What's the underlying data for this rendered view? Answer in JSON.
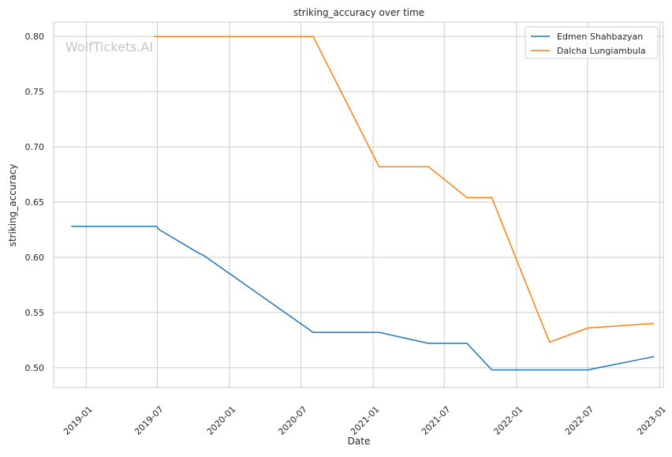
{
  "chart_data": {
    "type": "line",
    "title": "striking_accuracy over time",
    "xlabel": "Date",
    "ylabel": "striking_accuracy",
    "watermark": "WolfTickets.AI",
    "x_ticks": [
      "2019-01",
      "2019-07",
      "2020-01",
      "2020-07",
      "2021-01",
      "2021-07",
      "2022-01",
      "2022-07",
      "2023-01"
    ],
    "y_ticks": [
      "0.50",
      "0.55",
      "0.60",
      "0.65",
      "0.70",
      "0.75",
      "0.80"
    ],
    "xlim": [
      "2018-10-10",
      "2023-01-10"
    ],
    "ylim": [
      0.482,
      0.813
    ],
    "grid": true,
    "legend_position": "top-right",
    "series": [
      {
        "name": "Edmen Shahbazyan",
        "color": "#1f77b4",
        "points": [
          [
            "2018-11-24",
            0.628
          ],
          [
            "2019-06-29",
            0.628
          ],
          [
            "2019-07-06",
            0.625
          ],
          [
            "2019-10-18",
            0.603
          ],
          [
            "2019-10-26",
            0.602
          ],
          [
            "2020-08-01",
            0.532
          ],
          [
            "2021-01-16",
            0.532
          ],
          [
            "2021-05-22",
            0.522
          ],
          [
            "2021-08-28",
            0.522
          ],
          [
            "2021-10-30",
            0.498
          ],
          [
            "2022-07-02",
            0.498
          ],
          [
            "2022-12-17",
            0.51
          ]
        ]
      },
      {
        "name": "Dalcha Lungiambula",
        "color": "#ff7f0e",
        "points": [
          [
            "2019-06-22",
            0.8
          ],
          [
            "2020-08-01",
            0.8
          ],
          [
            "2021-01-16",
            0.682
          ],
          [
            "2021-05-22",
            0.682
          ],
          [
            "2021-08-28",
            0.654
          ],
          [
            "2021-10-30",
            0.654
          ],
          [
            "2022-03-26",
            0.523
          ],
          [
            "2022-07-02",
            0.536
          ],
          [
            "2022-12-17",
            0.54
          ]
        ]
      }
    ]
  }
}
